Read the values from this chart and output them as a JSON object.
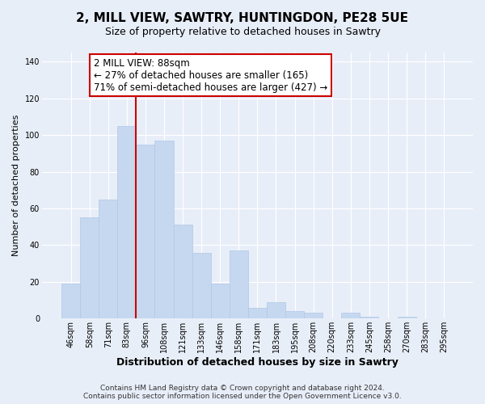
{
  "title": "2, MILL VIEW, SAWTRY, HUNTINGDON, PE28 5UE",
  "subtitle": "Size of property relative to detached houses in Sawtry",
  "xlabel": "Distribution of detached houses by size in Sawtry",
  "ylabel": "Number of detached properties",
  "bar_labels": [
    "46sqm",
    "58sqm",
    "71sqm",
    "83sqm",
    "96sqm",
    "108sqm",
    "121sqm",
    "133sqm",
    "146sqm",
    "158sqm",
    "171sqm",
    "183sqm",
    "195sqm",
    "208sqm",
    "220sqm",
    "233sqm",
    "245sqm",
    "258sqm",
    "270sqm",
    "283sqm",
    "295sqm"
  ],
  "bar_values": [
    19,
    55,
    65,
    105,
    95,
    97,
    51,
    36,
    19,
    37,
    6,
    9,
    4,
    3,
    0,
    3,
    1,
    0,
    1,
    0,
    0
  ],
  "bar_color": "#c5d8f0",
  "bar_edge_color": "#b0c8e8",
  "vline_color": "#cc0000",
  "annotation_text": "2 MILL VIEW: 88sqm\n← 27% of detached houses are smaller (165)\n71% of semi-detached houses are larger (427) →",
  "annotation_box_color": "#ffffff",
  "annotation_box_edge": "#cc0000",
  "ylim": [
    0,
    145
  ],
  "yticks": [
    0,
    20,
    40,
    60,
    80,
    100,
    120,
    140
  ],
  "background_color": "#e8eef8",
  "plot_bg_color": "#e8eef8",
  "grid_color": "#ffffff",
  "footer_line1": "Contains HM Land Registry data © Crown copyright and database right 2024.",
  "footer_line2": "Contains public sector information licensed under the Open Government Licence v3.0.",
  "title_fontsize": 11,
  "subtitle_fontsize": 9,
  "ylabel_fontsize": 8,
  "xlabel_fontsize": 9,
  "tick_fontsize": 7,
  "annotation_fontsize": 8.5,
  "footer_fontsize": 6.5
}
